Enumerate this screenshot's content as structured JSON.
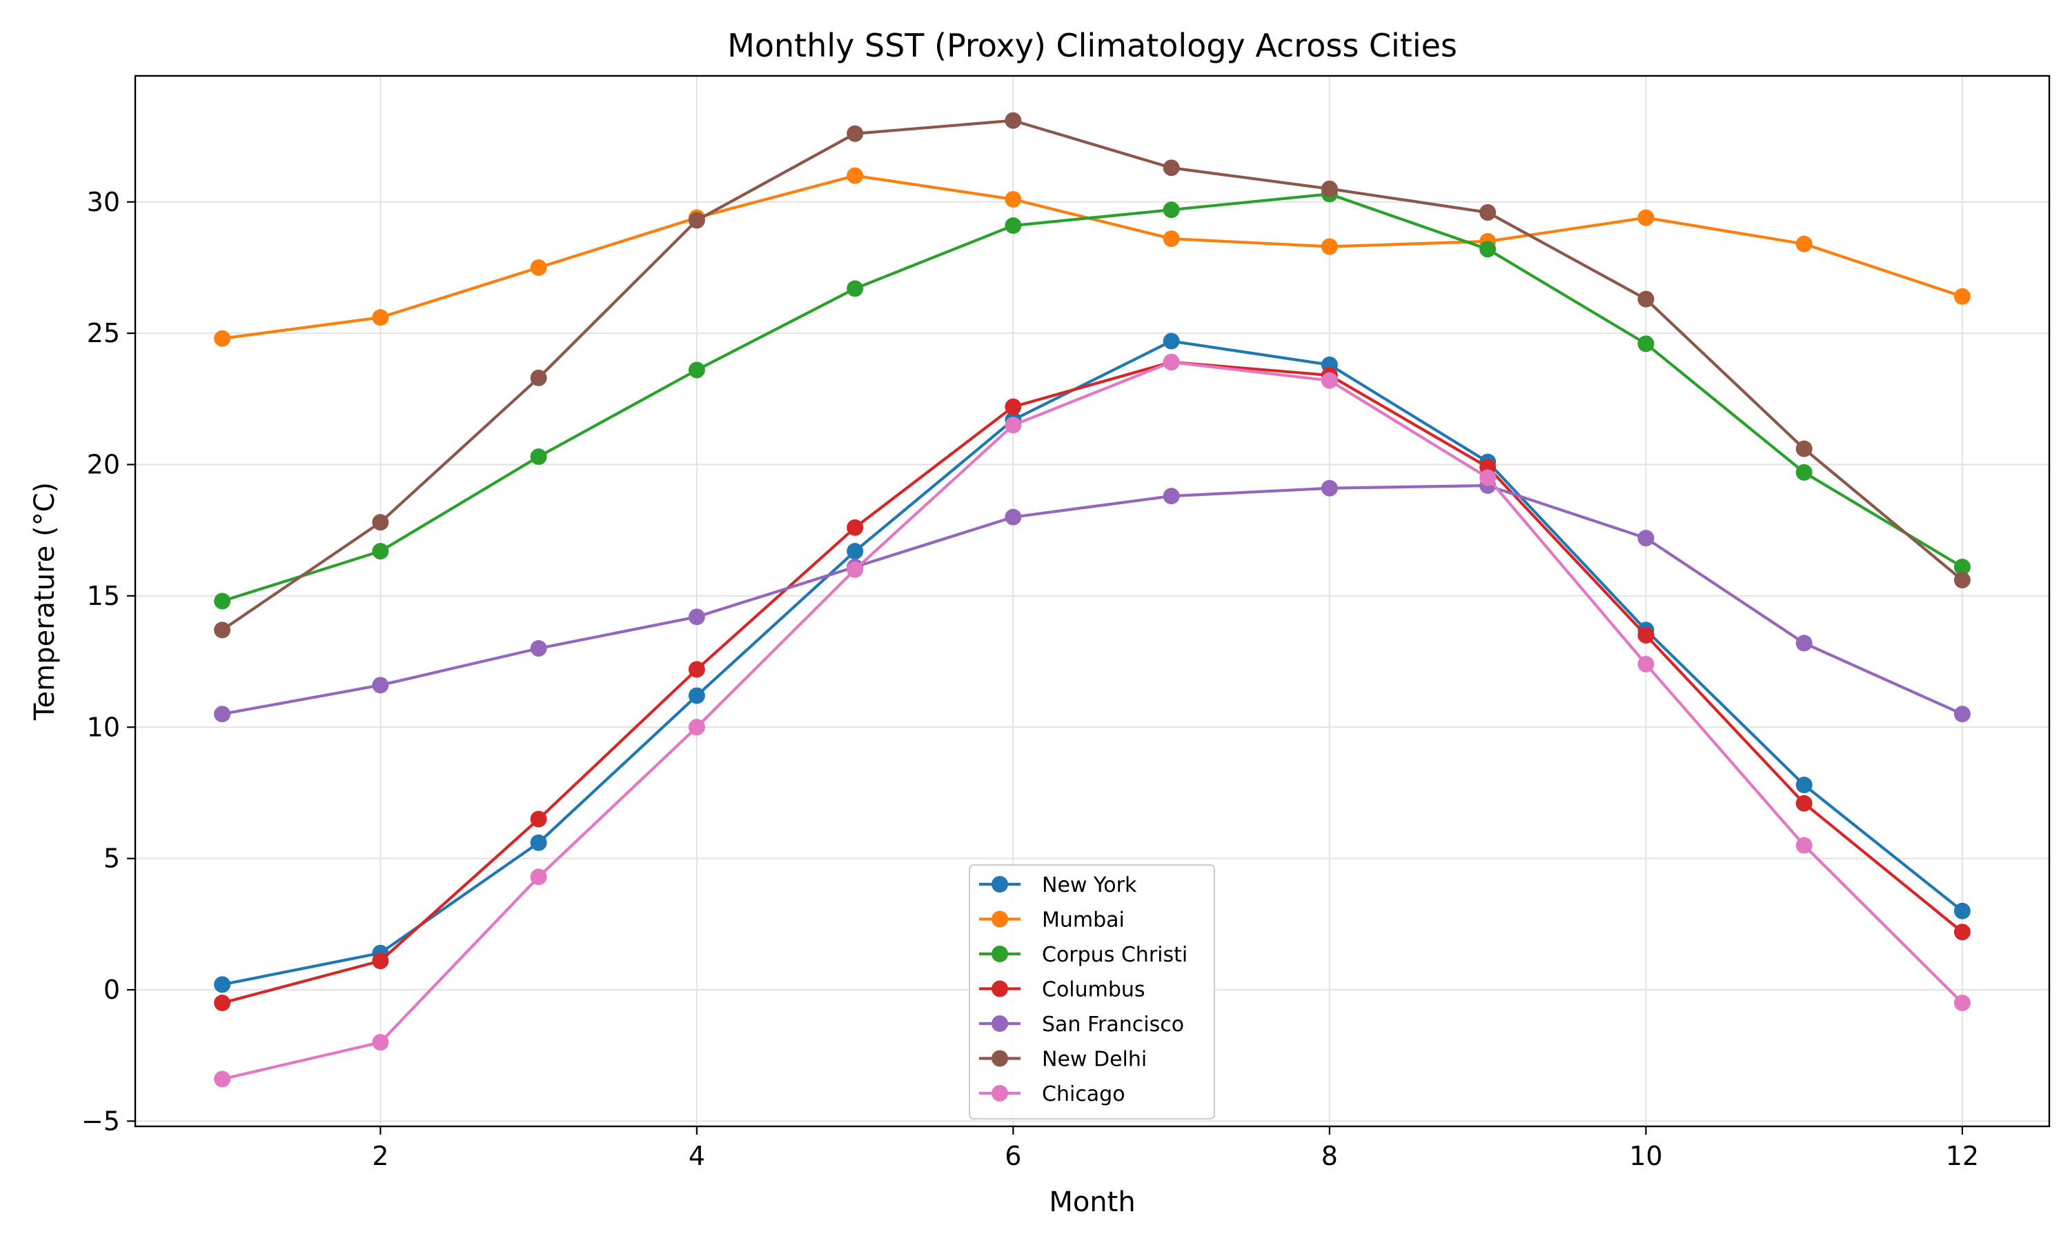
{
  "chart_data": {
    "type": "line",
    "title": "Monthly SST (Proxy) Climatology Across Cities",
    "xlabel": "Month",
    "ylabel": "Temperature (°C)",
    "xlim": [
      0.45,
      12.55
    ],
    "ylim": [
      -5.2,
      34.8
    ],
    "xticks": [
      2,
      4,
      6,
      8,
      10,
      12
    ],
    "yticks": [
      -5,
      0,
      5,
      10,
      15,
      20,
      25,
      30
    ],
    "ytick_labels": [
      "−5",
      "0",
      "5",
      "10",
      "15",
      "20",
      "25",
      "30"
    ],
    "grid": true,
    "legend_position": "lower-center",
    "x": [
      1,
      2,
      3,
      4,
      5,
      6,
      7,
      8,
      9,
      10,
      11,
      12
    ],
    "series": [
      {
        "name": "New York",
        "color": "#1f77b4",
        "values": [
          0.2,
          1.4,
          5.6,
          11.2,
          16.7,
          21.7,
          24.7,
          23.8,
          20.1,
          13.7,
          7.8,
          3.0
        ]
      },
      {
        "name": "Mumbai",
        "color": "#ff7f0e",
        "values": [
          24.8,
          25.6,
          27.5,
          29.4,
          31.0,
          30.1,
          28.6,
          28.3,
          28.5,
          29.4,
          28.4,
          26.4
        ]
      },
      {
        "name": "Corpus Christi",
        "color": "#2ca02c",
        "values": [
          14.8,
          16.7,
          20.3,
          23.6,
          26.7,
          29.1,
          29.7,
          30.3,
          28.2,
          24.6,
          19.7,
          16.1
        ]
      },
      {
        "name": "Columbus",
        "color": "#d62728",
        "values": [
          -0.5,
          1.1,
          6.5,
          12.2,
          17.6,
          22.2,
          23.9,
          23.4,
          19.9,
          13.5,
          7.1,
          2.2
        ]
      },
      {
        "name": "San Francisco",
        "color": "#9467bd",
        "values": [
          10.5,
          11.6,
          13.0,
          14.2,
          16.1,
          18.0,
          18.8,
          19.1,
          19.2,
          17.2,
          13.2,
          10.5
        ]
      },
      {
        "name": "New Delhi",
        "color": "#8c564b",
        "values": [
          13.7,
          17.8,
          23.3,
          29.3,
          32.6,
          33.1,
          31.3,
          30.5,
          29.6,
          26.3,
          20.6,
          15.6
        ]
      },
      {
        "name": "Chicago",
        "color": "#e377c2",
        "values": [
          -3.4,
          -2.0,
          4.3,
          10.0,
          16.0,
          21.5,
          23.9,
          23.2,
          19.5,
          12.4,
          5.5,
          -0.5
        ]
      }
    ]
  }
}
